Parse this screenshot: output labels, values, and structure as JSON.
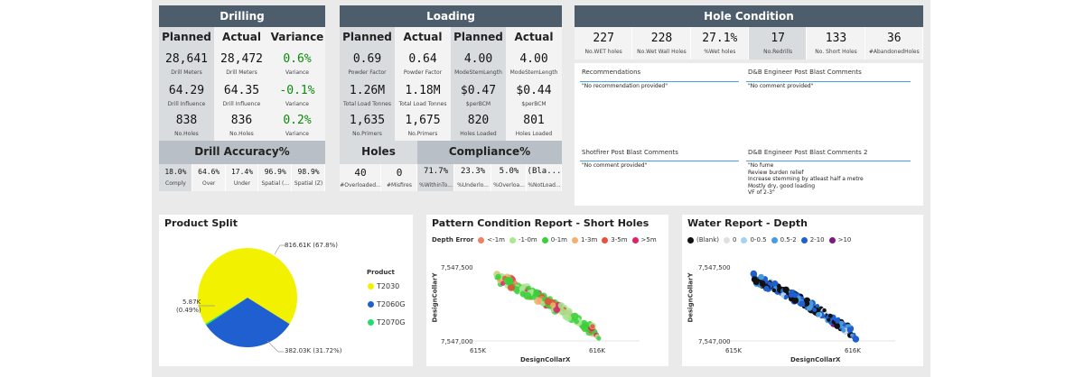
{
  "drilling": {
    "title": "Drilling",
    "cols": [
      "Planned",
      "Actual",
      "Variance"
    ],
    "rows": [
      {
        "values": [
          "28,641",
          "28,472",
          "0.6%"
        ],
        "labels": [
          "Drill Meters",
          "Drill Meters",
          "Variance"
        ]
      },
      {
        "values": [
          "64.29",
          "64.35",
          "-0.1%"
        ],
        "labels": [
          "Drill Influence",
          "Drill Influence",
          "Variance"
        ]
      },
      {
        "values": [
          "838",
          "836",
          "0.2%"
        ],
        "labels": [
          "No.Holes",
          "No.Holes",
          "Variance"
        ]
      }
    ],
    "accuracy_title": "Drill Accuracy%",
    "accuracy": [
      {
        "value": "18.0%",
        "label": "Comply"
      },
      {
        "value": "64.6%",
        "label": "Over"
      },
      {
        "value": "17.4%",
        "label": "Under"
      },
      {
        "value": "96.9%",
        "label": "Spatial (..."
      },
      {
        "value": "98.9%",
        "label": "Spatial (Z)"
      }
    ]
  },
  "loading": {
    "title": "Loading",
    "cols": [
      "Planned",
      "Actual",
      "Planned",
      "Actual"
    ],
    "rows": [
      {
        "values": [
          "0.69",
          "0.64",
          "4.00",
          "4.00"
        ],
        "labels": [
          "Powder Factor",
          "Powder Factor",
          "ModeStemLength",
          "ModeStemLength"
        ]
      },
      {
        "values": [
          "1.26M",
          "1.18M",
          "$0.47",
          "$0.44"
        ],
        "labels": [
          "Total Load Tonnes",
          "Total Load Tonnes",
          "$perBCM",
          "$perBCM"
        ]
      },
      {
        "values": [
          "1,635",
          "1,675",
          "820",
          "801"
        ],
        "labels": [
          "No.Primers",
          "No.Primers",
          "Holes Loaded",
          "Holes Loaded"
        ]
      }
    ],
    "holes_title": "Holes",
    "compliance_title": "Compliance%",
    "bottom": [
      {
        "value": "40",
        "label": "#Overloaded..."
      },
      {
        "value": "0",
        "label": "#Misfires"
      },
      {
        "value": "71.7%",
        "label": "%WithinTo..."
      },
      {
        "value": "23.3%",
        "label": "%Underlo..."
      },
      {
        "value": "5.0%",
        "label": "%Overloa..."
      },
      {
        "value": "(Bla...",
        "label": "%NotLoad..."
      }
    ]
  },
  "hole_condition": {
    "title": "Hole Condition",
    "items": [
      {
        "value": "227",
        "label": "No.WET holes"
      },
      {
        "value": "228",
        "label": "No.Wet Wall Holes"
      },
      {
        "value": "27.1%",
        "label": "%Wet holes"
      },
      {
        "value": "17",
        "label": "No.Redrills"
      },
      {
        "value": "133",
        "label": "No. Short Holes"
      },
      {
        "value": "36",
        "label": "#AbandonedHoles"
      }
    ]
  },
  "comments": {
    "recommendations": {
      "title": "Recommendations",
      "text": "\"No recommendation provided\""
    },
    "engineer": {
      "title": "D&B Engineer Post Blast Comments",
      "text": "\"No comment provided\""
    },
    "shotfirer": {
      "title": "Shotfirer Post Blast Comments",
      "text": "\"No comment provided\""
    },
    "engineer2": {
      "title": "D&B Engineer Post Blast Comments 2",
      "text": "\"No fume\nReview burden relief\nIncrease stemming by atleast half a metre\nMostly dry, good loading\nVF of 2-3\""
    }
  },
  "product_split": {
    "title": "Product Split",
    "legend_title": "Product",
    "slice_labels": [
      "816.61K (67.8%)",
      "382.03K (31.72%)",
      "5.87K",
      "(0.49%)"
    ]
  },
  "pattern": {
    "title": "Pattern Condition Report - Short Holes",
    "legend_title": "Depth Error",
    "xlabel": "DesignCollarX",
    "ylabel": "DesignCollarY",
    "yticks": [
      "7,547,500",
      "7,547,000"
    ],
    "xticks": [
      "615K",
      "616K"
    ]
  },
  "water": {
    "title": "Water Report - Depth",
    "xlabel": "DesignCollarX",
    "ylabel": "DesignCollarY",
    "yticks": [
      "7,547,500",
      "7,547,000"
    ],
    "xticks": [
      "615K",
      "616K"
    ]
  },
  "chart_data": [
    {
      "type": "pie",
      "title": "Product Split",
      "categories": [
        "T2030",
        "T2060G",
        "T2070G"
      ],
      "values": [
        816.61,
        382.03,
        5.87
      ],
      "percent": [
        67.8,
        31.72,
        0.49
      ],
      "colors": [
        "#f2f200",
        "#1f5fcf",
        "#22dd6a"
      ],
      "legend": "right"
    },
    {
      "type": "scatter",
      "title": "Pattern Condition Report - Short Holes",
      "xlabel": "DesignCollarX",
      "ylabel": "DesignCollarY",
      "series_names": [
        "<-1m",
        "-1-0m",
        "0-1m",
        "1-3m",
        "3-5m",
        ">5m"
      ],
      "colors": [
        "#f08060",
        "#a8e890",
        "#39d039",
        "#f5b070",
        "#e8503a",
        "#e0206a"
      ],
      "legend": "top"
    },
    {
      "type": "scatter",
      "title": "Water Report - Depth",
      "xlabel": "DesignCollarX",
      "ylabel": "DesignCollarY",
      "series_names": [
        "(Blank)",
        "0",
        "0-0.5",
        "0.5-2",
        "2-10",
        ">10"
      ],
      "colors": [
        "#111111",
        "#e0e0e0",
        "#a8d0f0",
        "#4a9ae0",
        "#1f5fcf",
        "#7a1a7a"
      ],
      "legend": "top"
    }
  ]
}
